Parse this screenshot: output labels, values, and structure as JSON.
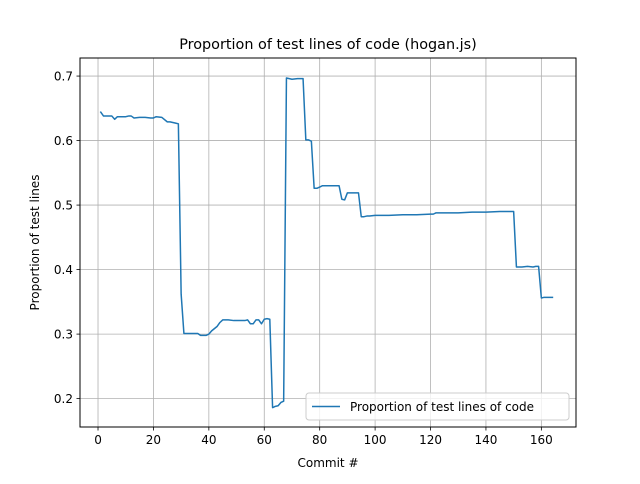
{
  "chart_data": {
    "type": "line",
    "title": "Proportion of test lines of code (hogan.js)",
    "xlabel": "Commit #",
    "ylabel": "Proportion of test lines",
    "xlim": [
      -6.5,
      172.5
    ],
    "ylim": [
      0.156,
      0.728
    ],
    "xticks": [
      0,
      20,
      40,
      60,
      80,
      100,
      120,
      140,
      160
    ],
    "yticks": [
      0.2,
      0.3,
      0.4,
      0.5,
      0.6,
      0.7
    ],
    "grid": true,
    "legend_position": "lower right",
    "series": [
      {
        "name": "Proportion of test lines of code",
        "color": "#1f77b4",
        "x": [
          1,
          2,
          3,
          5,
          6,
          7,
          9,
          10,
          11,
          12,
          13,
          15,
          17,
          19,
          20,
          21,
          23,
          25,
          26,
          28,
          29,
          30,
          31,
          33,
          36,
          37,
          39,
          40,
          41,
          43,
          44,
          45,
          47,
          49,
          51,
          53,
          54,
          55,
          56,
          57,
          58,
          59,
          60,
          61,
          62,
          63,
          64,
          65,
          66,
          67,
          68,
          70,
          72,
          73,
          74,
          75,
          76,
          77,
          78,
          79,
          80,
          81,
          82,
          83,
          85,
          87,
          88,
          89,
          90,
          91,
          93,
          94,
          95,
          96,
          97,
          98,
          100,
          105,
          110,
          115,
          120,
          121,
          122,
          123,
          125,
          130,
          135,
          140,
          145,
          150,
          151,
          152,
          153,
          155,
          157,
          158,
          159,
          160,
          161,
          162,
          163,
          164
        ],
        "y": [
          0.644,
          0.638,
          0.638,
          0.638,
          0.633,
          0.637,
          0.637,
          0.637,
          0.638,
          0.638,
          0.635,
          0.636,
          0.636,
          0.635,
          0.635,
          0.637,
          0.636,
          0.629,
          0.629,
          0.627,
          0.626,
          0.362,
          0.301,
          0.301,
          0.301,
          0.298,
          0.298,
          0.3,
          0.305,
          0.312,
          0.318,
          0.322,
          0.322,
          0.321,
          0.321,
          0.321,
          0.322,
          0.316,
          0.316,
          0.322,
          0.322,
          0.316,
          0.323,
          0.324,
          0.323,
          0.186,
          0.188,
          0.189,
          0.194,
          0.196,
          0.697,
          0.695,
          0.696,
          0.696,
          0.696,
          0.601,
          0.601,
          0.599,
          0.526,
          0.526,
          0.528,
          0.53,
          0.53,
          0.53,
          0.53,
          0.53,
          0.509,
          0.508,
          0.519,
          0.519,
          0.519,
          0.519,
          0.482,
          0.482,
          0.483,
          0.483,
          0.484,
          0.484,
          0.485,
          0.485,
          0.486,
          0.486,
          0.488,
          0.488,
          0.488,
          0.488,
          0.489,
          0.489,
          0.49,
          0.49,
          0.404,
          0.404,
          0.404,
          0.405,
          0.404,
          0.405,
          0.405,
          0.356,
          0.357,
          0.357,
          0.357,
          0.357
        ]
      }
    ]
  }
}
